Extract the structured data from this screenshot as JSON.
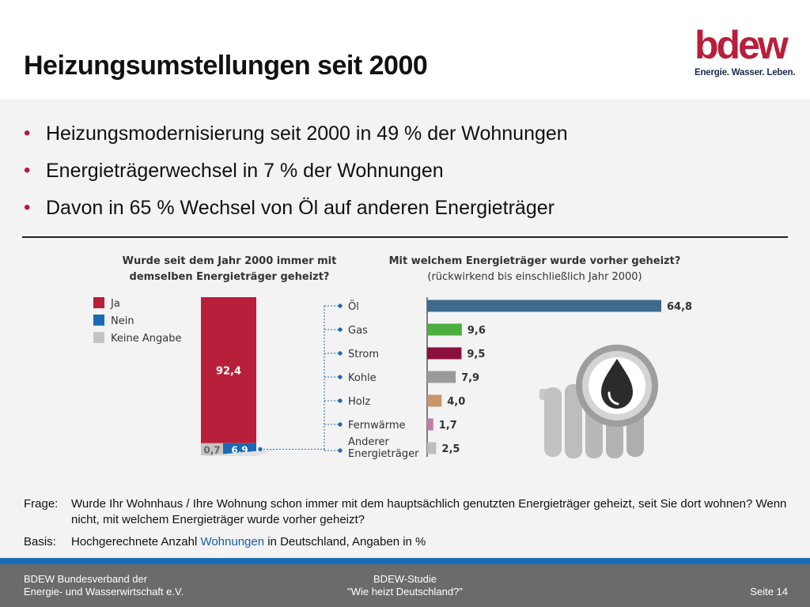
{
  "title": "Heizungsumstellungen seit 2000",
  "logo": {
    "wordmark": "bdew",
    "tagline": "Energie. Wasser. Leben."
  },
  "bullets": [
    "Heizungsmodernisierung seit 2000 in 49 % der Wohnungen",
    "Energieträgerwechsel in 7 % der Wohnungen",
    "Davon in 65 % Wechsel von Öl auf anderen Energieträger"
  ],
  "chart_data": [
    {
      "type": "bar",
      "stacked": true,
      "title": "Wurde seit dem Jahr 2000 immer mit demselben Energieträger geheizt?",
      "title_lines": [
        "Wurde seit dem Jahr 2000 immer mit",
        "demselben Energieträger geheizt?"
      ],
      "series": [
        {
          "name": "Ja",
          "value": 92.4,
          "label": "92,4",
          "color": "#b81f3a"
        },
        {
          "name": "Nein",
          "value": 6.9,
          "label": "6,9",
          "color": "#1a6ab5"
        },
        {
          "name": "Keine Angabe",
          "value": 0.7,
          "label": "0,7",
          "color": "#c4c4c4"
        }
      ],
      "legend_position": "left"
    },
    {
      "type": "bar",
      "orientation": "horizontal",
      "title": "Mit welchem Energieträger wurde vorher geheizt?",
      "subtitle": "(rückwirkend bis einschließlich Jahr 2000)",
      "categories": [
        "Öl",
        "Gas",
        "Strom",
        "Kohle",
        "Holz",
        "Fernwärme",
        "Anderer Energieträger"
      ],
      "category_lines": [
        [
          "Öl"
        ],
        [
          "Gas"
        ],
        [
          "Strom"
        ],
        [
          "Kohle"
        ],
        [
          "Holz"
        ],
        [
          "Fernwärme"
        ],
        [
          "Anderer",
          "Energieträger"
        ]
      ],
      "values": [
        64.8,
        9.6,
        9.5,
        7.9,
        4.0,
        1.7,
        2.5
      ],
      "value_labels": [
        "64,8",
        "9,6",
        "9,5",
        "7,9",
        "4,0",
        "1,7",
        "2,5"
      ],
      "colors": [
        "#3e6a8e",
        "#4cae3c",
        "#8a0f3c",
        "#9a9a9a",
        "#c9956a",
        "#c67aa6",
        "#bdbdbd"
      ]
    }
  ],
  "notes": {
    "frage_key": "Frage:",
    "frage_text": "Wurde Ihr Wohnhaus / Ihre Wohnung schon immer mit dem hauptsächlich genutzten Energieträger geheizt, seit Sie dort wohnen? Wenn nicht, mit welchem Energieträger wurde vorher geheizt?",
    "basis_key": "Basis:",
    "basis_pre": "Hochgerechnete Anzahl ",
    "basis_link": "Wohnungen",
    "basis_post": " in Deutschland, Angaben in %"
  },
  "footer": {
    "org_line1": "BDEW Bundesverband der",
    "org_line2": "Energie- und Wasserwirtschaft e.V.",
    "study_line1": "BDEW-Studie",
    "study_line2": "\"Wie heizt Deutschland?\"",
    "page": "Seite 14"
  },
  "colors": {
    "accent": "#b5193a",
    "footer_bg": "#6b6b6b",
    "footer_stripe": "#1a6db5",
    "connector": "#1a6ab5"
  }
}
